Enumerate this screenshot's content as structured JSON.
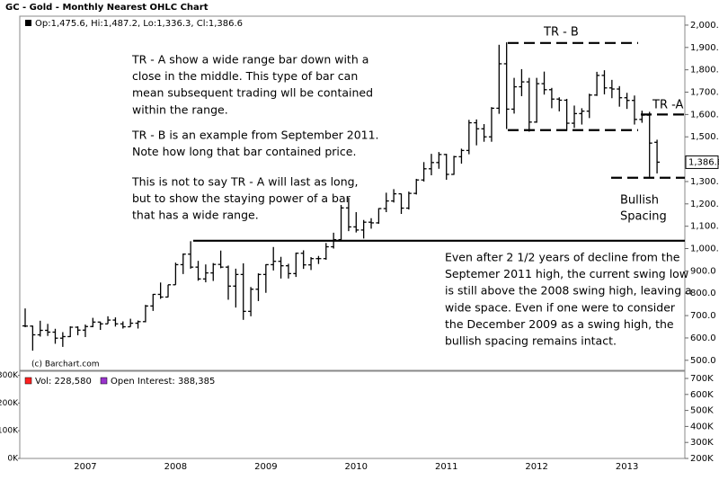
{
  "chart_data": [
    {
      "type": "ohlc",
      "title": "GC - Gold - Monthly Nearest OHLC Chart",
      "subtitle": "Op:1,475.6, Hi:1,487.2, Lo:1,336.3, Cl:1,386.6",
      "credit": "(c) Barchart.com",
      "color": "#000000",
      "open": [
        654,
        653,
        614,
        634,
        626,
        599,
        606,
        648,
        635,
        651,
        671,
        663,
        680,
        663,
        650,
        666,
        673,
        743,
        795,
        783,
        838,
        928,
        975,
        917,
        864,
        891,
        929,
        917,
        832,
        884,
        719,
        818,
        884,
        928,
        943,
        923,
        888,
        979,
        927,
        955,
        955,
        1008,
        1040,
        1182,
        1097,
        1083,
        1118,
        1115,
        1179,
        1213,
        1245,
        1181,
        1247,
        1307,
        1357,
        1385,
        1421,
        1332,
        1411,
        1439,
        1563,
        1536,
        1500,
        1628,
        1827,
        1624,
        1724,
        1746,
        1566,
        1738,
        1711,
        1669,
        1664,
        1561,
        1604,
        1615,
        1687,
        1775,
        1719,
        1714,
        1675,
        1663,
        1578,
        1597,
        1475.6
      ],
      "high": [
        732,
        655,
        677,
        663,
        641,
        626,
        652,
        652,
        660,
        690,
        673,
        697,
        692,
        674,
        686,
        678,
        748,
        797,
        848,
        838,
        937,
        978,
        1033,
        945,
        929,
        935,
        991,
        924,
        910,
        934,
        828,
        889,
        930,
        1007,
        963,
        932,
        982,
        992,
        962,
        967,
        1025,
        1071,
        1195,
        1227,
        1163,
        1128,
        1136,
        1181,
        1250,
        1266,
        1246,
        1255,
        1312,
        1387,
        1424,
        1432,
        1424,
        1415,
        1447,
        1576,
        1578,
        1557,
        1633,
        1912,
        1923,
        1764,
        1803,
        1764,
        1764,
        1792,
        1719,
        1677,
        1670,
        1640,
        1628,
        1693,
        1791,
        1798,
        1755,
        1727,
        1697,
        1685,
        1617,
        1612,
        1487.2
      ],
      "low": [
        648,
        543,
        606,
        609,
        574,
        560,
        604,
        612,
        604,
        648,
        636,
        663,
        651,
        642,
        650,
        642,
        670,
        721,
        775,
        782,
        838,
        886,
        910,
        856,
        849,
        855,
        912,
        771,
        736,
        681,
        697,
        765,
        802,
        902,
        866,
        866,
        873,
        909,
        904,
        931,
        950,
        1000,
        1035,
        1078,
        1072,
        1045,
        1089,
        1111,
        1163,
        1206,
        1155,
        1175,
        1242,
        1300,
        1328,
        1357,
        1308,
        1330,
        1380,
        1422,
        1462,
        1478,
        1478,
        1603,
        1535,
        1604,
        1682,
        1523,
        1563,
        1689,
        1628,
        1614,
        1527,
        1540,
        1555,
        1584,
        1683,
        1690,
        1673,
        1635,
        1625,
        1555,
        1563,
        1321,
        1336.3
      ],
      "close": [
        653,
        614,
        634,
        626,
        599,
        606,
        648,
        635,
        651,
        671,
        663,
        680,
        663,
        650,
        666,
        673,
        743,
        795,
        783,
        838,
        928,
        975,
        917,
        864,
        891,
        929,
        917,
        832,
        884,
        719,
        818,
        884,
        928,
        943,
        923,
        888,
        979,
        927,
        955,
        955,
        1008,
        1040,
        1182,
        1097,
        1083,
        1118,
        1115,
        1179,
        1213,
        1245,
        1181,
        1247,
        1307,
        1357,
        1385,
        1421,
        1332,
        1411,
        1439,
        1563,
        1536,
        1500,
        1628,
        1827,
        1624,
        1724,
        1746,
        1566,
        1738,
        1711,
        1669,
        1664,
        1561,
        1604,
        1615,
        1687,
        1775,
        1719,
        1714,
        1675,
        1663,
        1578,
        1597,
        1472,
        1386.6
      ],
      "last_price": {
        "value": 1386.6,
        "label": "1,386.6"
      },
      "ylim": [
        455,
        2040
      ],
      "yticks": [
        {
          "value": 500,
          "label": "500.0"
        },
        {
          "value": 600,
          "label": "600.0"
        },
        {
          "value": 700,
          "label": "700.0"
        },
        {
          "value": 800,
          "label": "800.0"
        },
        {
          "value": 900,
          "label": "900.0"
        },
        {
          "value": 1000,
          "label": "1,000.0"
        },
        {
          "value": 1100,
          "label": "1,100.0"
        },
        {
          "value": 1200,
          "label": "1,200.0"
        },
        {
          "value": 1300,
          "label": "1,300.0"
        },
        {
          "value": 1400,
          "label": "1,400.0"
        },
        {
          "value": 1500,
          "label": "1,500.0"
        },
        {
          "value": 1600,
          "label": "1,600.0"
        },
        {
          "value": 1700,
          "label": "1,700.0"
        },
        {
          "value": 1800,
          "label": "1,800.0"
        },
        {
          "value": 1900,
          "label": "1,900.0"
        },
        {
          "value": 2000,
          "label": "2,000.0"
        }
      ],
      "reference_lines": [
        {
          "value": 1920,
          "style": "dashed"
        },
        {
          "value": 1530,
          "style": "dashed"
        },
        {
          "value": 1600,
          "style": "dashed"
        },
        {
          "value": 1317,
          "style": "dashed"
        },
        {
          "value": 1035,
          "style": "solid"
        }
      ],
      "labels": [
        "TR - B",
        "TR -A",
        "Bullish",
        "Spacing"
      ],
      "notes": [
        [
          "TR - A show a wide range bar down with a",
          "close in the middle.  This type of bar can",
          "mean subsequent trading wll be contained",
          "within the range."
        ],
        [
          "TR - B is an example from September 2011.",
          "Note how long that bar contained price."
        ],
        [
          "This is not to say TR - A will last as long,",
          "but to show the staying power of a bar",
          "that has a wide range."
        ],
        [
          "Even after 2 1/2 years of decline from the",
          "Septemer 2011 high, the current swing low",
          "is still above the 2008 swing high, leaving a",
          "wide space.  Even if one were to consider",
          "the December 2009 as a swing high, the",
          "bullish spacing remains intact."
        ]
      ]
    },
    {
      "type": "bar",
      "categories": [
        null,
        null,
        null,
        null,
        null,
        null,
        null,
        null,
        "2007",
        null,
        null,
        null,
        null,
        null,
        null,
        null,
        null,
        null,
        null,
        null,
        "2008",
        null,
        null,
        null,
        null,
        null,
        null,
        null,
        null,
        null,
        null,
        null,
        "2009",
        null,
        null,
        null,
        null,
        null,
        null,
        null,
        null,
        null,
        null,
        null,
        "2010",
        null,
        null,
        null,
        null,
        null,
        null,
        null,
        null,
        null,
        null,
        null,
        "2011",
        null,
        null,
        null,
        null,
        null,
        null,
        null,
        null,
        null,
        null,
        null,
        "2012",
        null,
        null,
        null,
        null,
        null,
        null,
        null,
        null,
        null,
        null,
        null,
        "2013",
        null,
        null,
        null,
        null
      ],
      "series": [
        {
          "name": "Vol: 228,580",
          "color": "#ff2020",
          "up_color": "#1f7f1f",
          "values": [
            75000,
            80000,
            45000,
            50000,
            55000,
            65000,
            60000,
            85000,
            95000,
            100000,
            75000,
            80000,
            110000,
            75000,
            95000,
            120000,
            135000,
            150000,
            120000,
            100000,
            130000,
            150000,
            200000,
            180000,
            115000,
            120000,
            140000,
            170000,
            210000,
            200000,
            150000,
            135000,
            140000,
            165000,
            180000,
            130000,
            120000,
            145000,
            120000,
            115000,
            160000,
            180000,
            225000,
            215000,
            165000,
            150000,
            145000,
            160000,
            240000,
            195000,
            165000,
            155000,
            215000,
            230000,
            245000,
            175000,
            190000,
            215000,
            220000,
            220000,
            245000,
            220000,
            265000,
            260000,
            225000,
            180000,
            200000,
            255000,
            160000,
            165000,
            175000,
            155000,
            170000,
            195000,
            160000,
            190000,
            245000,
            200000,
            190000,
            200000,
            215000,
            240000,
            200000,
            250000,
            228580
          ]
        },
        {
          "name": "Open Interest: 388,385",
          "color": "#9933cc",
          "axis": "y2",
          "values": [
            340000,
            330000,
            320000,
            335000,
            340000,
            345000,
            360000,
            370000,
            380000,
            395000,
            380000,
            400000,
            410000,
            395000,
            400000,
            410000,
            420000,
            450000,
            470000,
            460000,
            470000,
            460000,
            420000,
            400000,
            390000,
            420000,
            410000,
            380000,
            360000,
            300000,
            290000,
            310000,
            330000,
            360000,
            350000,
            340000,
            380000,
            410000,
            400000,
            410000,
            450000,
            480000,
            510000,
            500000,
            480000,
            490000,
            500000,
            520000,
            560000,
            580000,
            550000,
            560000,
            590000,
            600000,
            590000,
            580000,
            560000,
            570000,
            600000,
            620000,
            640000,
            630000,
            650000,
            610000,
            560000,
            540000,
            530000,
            490000,
            470000,
            480000,
            470000,
            450000,
            440000,
            450000,
            460000,
            470000,
            500000,
            520000,
            480000,
            450000,
            440000,
            450000,
            430000,
            420000,
            388385
          ]
        }
      ],
      "ylim": [
        0,
        315000
      ],
      "yticks": [
        {
          "value": 0,
          "label": "0K"
        },
        {
          "value": 100000,
          "label": "100K"
        },
        {
          "value": 200000,
          "label": "200K"
        },
        {
          "value": 300000,
          "label": "300K"
        }
      ],
      "y2lim": [
        200000,
        745000
      ],
      "y2ticks": [
        {
          "value": 200000,
          "label": "200K"
        },
        {
          "value": 300000,
          "label": "300K"
        },
        {
          "value": 400000,
          "label": "400K"
        },
        {
          "value": 500000,
          "label": "500K"
        },
        {
          "value": 600000,
          "label": "600K"
        },
        {
          "value": 700000,
          "label": "700K"
        }
      ]
    }
  ]
}
